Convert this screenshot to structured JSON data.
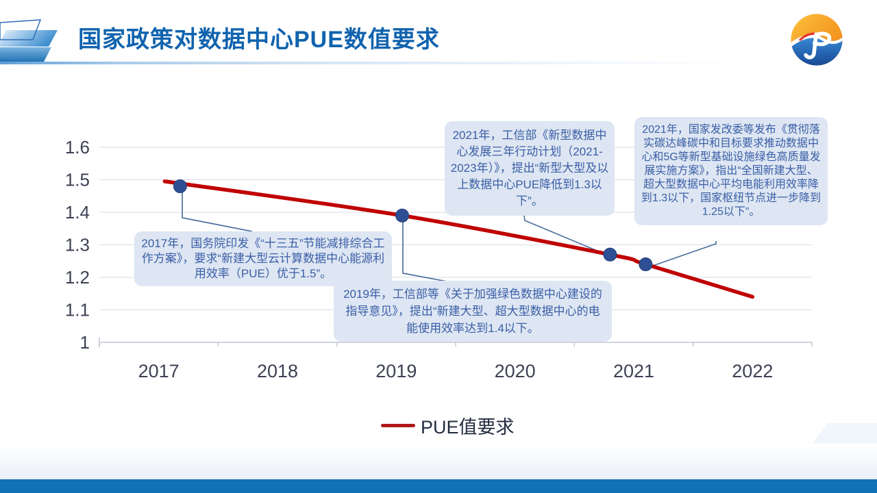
{
  "slide": {
    "title": "国家政策对数据中心PUE数值要求",
    "logo_name": "jp-brand-logo"
  },
  "chart_data": {
    "type": "line",
    "title": "",
    "x_categories": [
      "2017",
      "2018",
      "2019",
      "2020",
      "2021",
      "2022"
    ],
    "x_range": [
      2016.5,
      2022.5
    ],
    "y_ticks": [
      "1.6",
      "1.5",
      "1.4",
      "1.3",
      "1.2",
      "1.1",
      "1"
    ],
    "y_tick_values": [
      1.6,
      1.5,
      1.4,
      1.3,
      1.2,
      1.1,
      1
    ],
    "ylim": [
      1.0,
      1.6
    ],
    "grid": true,
    "legend_position": "bottom",
    "series": [
      {
        "name": "PUE值要求",
        "color": "#c00000",
        "line_points": [
          {
            "x": 2017.05,
            "y": 1.495
          },
          {
            "x": 2019.05,
            "y": 1.39
          },
          {
            "x": 2020.8,
            "y": 1.27
          },
          {
            "x": 2021.1,
            "y": 1.24
          },
          {
            "x": 2022.0,
            "y": 1.14
          }
        ],
        "markers": [
          {
            "x": 2017.18,
            "y": 1.48
          },
          {
            "x": 2019.05,
            "y": 1.39
          },
          {
            "x": 2020.8,
            "y": 1.27
          },
          {
            "x": 2021.1,
            "y": 1.24
          }
        ],
        "marker_color": "#2e4f93"
      }
    ]
  },
  "annotations": [
    {
      "id": "2017",
      "text": "2017年，国务院印发《“十三五”节能减排综合工作方案》，要求“新建大型云计算数据中心能源利用效率（PUE）优于1.5”。"
    },
    {
      "id": "2019",
      "text": "2019年，工信部等《关于加强绿色数据中心建设的指导意见》，提出“新建大型、超大型数据中心的电能使用效率达到1.4以下。"
    },
    {
      "id": "2021-miit",
      "text": "2021年，工信部《新型数据中心发展三年行动计划（2021-2023年）》，提出“新型大型及以上数据中心PUE降低到1.3以下”。"
    },
    {
      "id": "2021-ndrc",
      "text": "2021年，国家发改委等发布《贯彻落实碳达峰碳中和目标要求推动数据中心和5G等新型基础设施绿色高质量发展实施方案》，指出“全国新建大型、超大型数据中心平均电能利用效率降到1.3以下，国家枢纽节点进一步降到1.25以下”。"
    }
  ],
  "legend": {
    "label": "PUE值要求",
    "line_color": "#b01818"
  },
  "colors": {
    "title": "#1063ae",
    "grid": "#dde1ea",
    "axis": "#c3c8d4",
    "tick_label": "#3d4254",
    "callout_bg": "#dde6f2",
    "callout_text": "#3b5ea7",
    "connector": "#51719f",
    "footer_bar": "#1272b6"
  }
}
